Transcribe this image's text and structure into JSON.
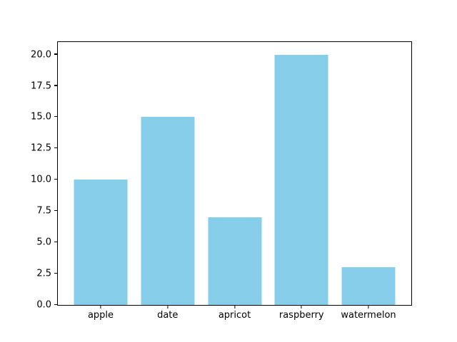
{
  "chart_data": {
    "type": "bar",
    "categories": [
      "apple",
      "date",
      "apricot",
      "raspberry",
      "watermelon"
    ],
    "values": [
      10,
      15,
      7,
      20,
      3
    ],
    "title": "",
    "xlabel": "",
    "ylabel": "",
    "ylim": [
      0,
      21
    ],
    "xlim": [
      -0.64,
      4.64
    ],
    "bar_width": 0.8,
    "yticks": [
      0.0,
      2.5,
      5.0,
      7.5,
      10.0,
      12.5,
      15.0,
      17.5,
      20.0
    ],
    "ytick_labels": [
      "0.0",
      "2.5",
      "5.0",
      "7.5",
      "10.0",
      "12.5",
      "15.0",
      "17.5",
      "20.0"
    ],
    "grid": false,
    "legend": null,
    "colors": {
      "bar": "#87ceeb",
      "spine": "#000000",
      "background": "#ffffff",
      "text": "#000000"
    }
  }
}
